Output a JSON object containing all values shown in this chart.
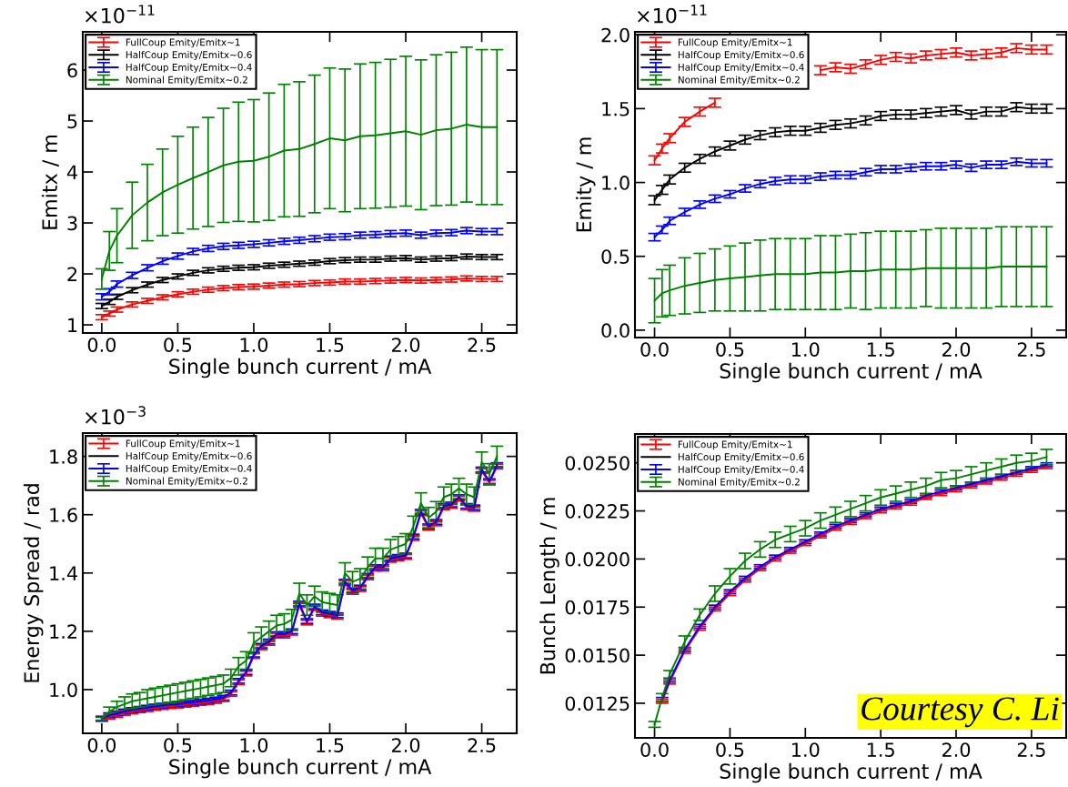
{
  "chart_data": [
    {
      "type": "line",
      "xlabel": "Single bunch current / mA",
      "ylabel": "Emitx / m",
      "annotations": [
        "×10$^{−11}$"
      ],
      "legend": "top left",
      "xlim": [
        -0.125,
        2.73
      ],
      "xticks": [
        {
          "value": 0,
          "label": "0.0"
        },
        0.5,
        {
          "value": 1,
          "label": "1.0"
        },
        1.5,
        {
          "value": 2,
          "label": "2.0"
        },
        2.5
      ],
      "ylim": [
        0.84,
        6.75
      ],
      "yticks": [
        1,
        2,
        3,
        4,
        5,
        6
      ],
      "x": [
        0,
        0.05,
        0.1,
        0.2,
        0.3,
        0.4,
        0.5,
        0.6,
        0.7,
        0.8,
        0.9,
        1.0,
        1.1,
        1.2,
        1.3,
        1.4,
        1.5,
        1.6,
        1.7,
        1.8,
        1.9,
        2.0,
        2.1,
        2.2,
        2.3,
        2.4,
        2.5,
        2.6
      ],
      "series": [
        {
          "name": "FullCoup Emity/Emitx~1",
          "color": "#ff0000",
          "values": [
            1.15,
            1.22,
            1.3,
            1.4,
            1.47,
            1.54,
            1.6,
            1.65,
            1.69,
            1.72,
            1.74,
            1.75,
            1.77,
            1.79,
            1.8,
            1.82,
            1.83,
            1.85,
            1.85,
            1.86,
            1.87,
            1.88,
            1.87,
            1.88,
            1.89,
            1.91,
            1.9,
            1.9
          ],
          "errors": [
            0.05,
            0.05,
            0.05,
            0.05,
            0.05,
            0.05,
            0.05,
            0.05,
            0.05,
            0.05,
            0.05,
            0.05,
            0.05,
            0.05,
            0.05,
            0.05,
            0.05,
            0.05,
            0.05,
            0.05,
            0.05,
            0.05,
            0.05,
            0.05,
            0.05,
            0.05,
            0.05,
            0.05
          ]
        },
        {
          "name": "HalfCoup Emity/Emitx~0.6",
          "color": "#000000",
          "values": [
            1.37,
            1.45,
            1.55,
            1.68,
            1.79,
            1.88,
            1.95,
            2.02,
            2.07,
            2.1,
            2.12,
            2.13,
            2.16,
            2.18,
            2.2,
            2.22,
            2.25,
            2.27,
            2.28,
            2.28,
            2.3,
            2.31,
            2.28,
            2.3,
            2.31,
            2.34,
            2.33,
            2.33
          ],
          "errors": [
            0.05,
            0.05,
            0.05,
            0.05,
            0.05,
            0.05,
            0.05,
            0.05,
            0.05,
            0.05,
            0.05,
            0.05,
            0.05,
            0.05,
            0.05,
            0.05,
            0.05,
            0.05,
            0.05,
            0.05,
            0.05,
            0.05,
            0.05,
            0.05,
            0.05,
            0.05,
            0.05,
            0.05
          ]
        },
        {
          "name": "HalfCoup Emity/Emitx~0.4",
          "color": "#0000ff",
          "values": [
            1.55,
            1.65,
            1.8,
            1.97,
            2.12,
            2.25,
            2.35,
            2.44,
            2.5,
            2.54,
            2.56,
            2.58,
            2.61,
            2.64,
            2.66,
            2.69,
            2.72,
            2.73,
            2.76,
            2.77,
            2.79,
            2.8,
            2.76,
            2.8,
            2.81,
            2.85,
            2.83,
            2.83
          ],
          "errors": [
            0.06,
            0.06,
            0.06,
            0.06,
            0.06,
            0.06,
            0.06,
            0.06,
            0.06,
            0.06,
            0.06,
            0.06,
            0.06,
            0.06,
            0.06,
            0.06,
            0.06,
            0.06,
            0.06,
            0.06,
            0.06,
            0.06,
            0.06,
            0.06,
            0.06,
            0.06,
            0.06,
            0.06
          ]
        },
        {
          "name": "Nominal Emity/Emitx~0.2",
          "color": "#008000",
          "values": [
            1.9,
            2.45,
            2.75,
            3.15,
            3.4,
            3.6,
            3.75,
            3.88,
            4.0,
            4.13,
            4.2,
            4.22,
            4.3,
            4.42,
            4.45,
            4.55,
            4.66,
            4.62,
            4.7,
            4.72,
            4.76,
            4.8,
            4.73,
            4.82,
            4.85,
            4.93,
            4.88,
            4.88
          ],
          "errors": [
            0.2,
            0.38,
            0.53,
            0.65,
            0.75,
            0.85,
            0.95,
            1.0,
            1.07,
            1.12,
            1.17,
            1.2,
            1.25,
            1.3,
            1.32,
            1.35,
            1.38,
            1.4,
            1.42,
            1.43,
            1.45,
            1.47,
            1.47,
            1.48,
            1.5,
            1.52,
            1.52,
            1.52
          ]
        }
      ]
    },
    {
      "type": "line",
      "xlabel": "Single bunch current / mA",
      "ylabel": "Emity / m",
      "annotations": [
        "×10$^{−11}$"
      ],
      "legend": "top left",
      "xlim": [
        -0.13,
        2.73
      ],
      "xticks": [
        {
          "value": 0,
          "label": "0.0"
        },
        0.5,
        {
          "value": 1,
          "label": "1.0"
        },
        1.5,
        {
          "value": 2,
          "label": "2.0"
        },
        2.5
      ],
      "ylim": [
        -0.05,
        2.02
      ],
      "yticks": [
        {
          "value": 0,
          "label": "0.0"
        },
        0.5,
        {
          "value": 1,
          "label": "1.0"
        },
        1.5,
        {
          "value": 2,
          "label": "2.0"
        }
      ],
      "x": [
        0,
        0.05,
        0.1,
        0.2,
        0.3,
        0.4,
        0.5,
        0.6,
        0.7,
        0.8,
        0.9,
        1.0,
        1.1,
        1.2,
        1.3,
        1.4,
        1.5,
        1.6,
        1.7,
        1.8,
        1.9,
        2.0,
        2.1,
        2.2,
        2.3,
        2.4,
        2.5,
        2.6
      ],
      "series": [
        {
          "name": "FullCoup Emity/Emitx~1",
          "color": "#ff0000",
          "values": [
            1.15,
            1.23,
            1.3,
            1.41,
            1.48,
            1.54,
            null,
            null,
            null,
            null,
            null,
            null,
            1.76,
            1.78,
            1.77,
            1.8,
            1.83,
            1.85,
            1.84,
            1.86,
            1.87,
            1.88,
            1.86,
            1.87,
            1.88,
            1.91,
            1.9,
            1.9
          ],
          "errors": [
            0.03,
            0.03,
            0.03,
            0.03,
            0.03,
            0.03,
            null,
            null,
            null,
            null,
            null,
            null,
            0.03,
            0.03,
            0.03,
            0.03,
            0.03,
            0.03,
            0.03,
            0.03,
            0.03,
            0.03,
            0.03,
            0.03,
            0.03,
            0.03,
            0.03,
            0.03
          ]
        },
        {
          "name": "HalfCoup Emity/Emitx~0.6",
          "color": "#000000",
          "values": [
            0.88,
            0.95,
            1.02,
            1.1,
            1.16,
            1.21,
            1.25,
            1.29,
            1.32,
            1.34,
            1.35,
            1.35,
            1.37,
            1.39,
            1.4,
            1.42,
            1.45,
            1.46,
            1.46,
            1.47,
            1.48,
            1.49,
            1.46,
            1.48,
            1.48,
            1.51,
            1.5,
            1.5
          ],
          "errors": [
            0.03,
            0.03,
            0.03,
            0.03,
            0.03,
            0.03,
            0.03,
            0.03,
            0.03,
            0.03,
            0.03,
            0.03,
            0.03,
            0.03,
            0.03,
            0.03,
            0.03,
            0.03,
            0.03,
            0.03,
            0.03,
            0.03,
            0.03,
            0.03,
            0.03,
            0.03,
            0.03,
            0.03
          ]
        },
        {
          "name": "HalfCoup Emity/Emitx~0.4",
          "color": "#0000ff",
          "values": [
            0.63,
            0.68,
            0.74,
            0.8,
            0.85,
            0.89,
            0.92,
            0.96,
            0.99,
            1.01,
            1.02,
            1.02,
            1.04,
            1.05,
            1.05,
            1.07,
            1.09,
            1.09,
            1.1,
            1.11,
            1.11,
            1.12,
            1.1,
            1.12,
            1.12,
            1.14,
            1.13,
            1.13
          ],
          "errors": [
            0.025,
            0.025,
            0.025,
            0.025,
            0.025,
            0.025,
            0.025,
            0.025,
            0.025,
            0.025,
            0.025,
            0.025,
            0.025,
            0.025,
            0.025,
            0.025,
            0.025,
            0.025,
            0.025,
            0.025,
            0.025,
            0.025,
            0.025,
            0.025,
            0.025,
            0.025,
            0.025,
            0.025
          ]
        },
        {
          "name": "Nominal Emity/Emitx~0.2",
          "color": "#008000",
          "values": [
            0.2,
            0.25,
            0.27,
            0.3,
            0.32,
            0.34,
            0.35,
            0.36,
            0.37,
            0.38,
            0.38,
            0.38,
            0.39,
            0.39,
            0.4,
            0.4,
            0.41,
            0.41,
            0.41,
            0.42,
            0.42,
            0.42,
            0.42,
            0.42,
            0.43,
            0.43,
            0.43,
            0.43
          ],
          "errors": [
            0.15,
            0.16,
            0.17,
            0.19,
            0.2,
            0.21,
            0.22,
            0.23,
            0.24,
            0.24,
            0.24,
            0.24,
            0.25,
            0.25,
            0.25,
            0.26,
            0.26,
            0.26,
            0.26,
            0.26,
            0.27,
            0.27,
            0.27,
            0.27,
            0.27,
            0.27,
            0.27,
            0.27
          ]
        }
      ]
    },
    {
      "type": "line",
      "xlabel": "Single bunch current / mA",
      "ylabel": "Energy Spread / rad",
      "annotations": [
        "×10$^{−3}$"
      ],
      "legend": "top left",
      "xlim": [
        -0.125,
        2.73
      ],
      "xticks": [
        {
          "value": 0,
          "label": "0.0"
        },
        0.5,
        {
          "value": 1,
          "label": "1.0"
        },
        1.5,
        {
          "value": 2,
          "label": "2.0"
        },
        2.5
      ],
      "ylim": [
        0.85,
        1.88
      ],
      "yticks": [
        {
          "value": 1,
          "label": "1.0"
        },
        1.2,
        1.4,
        1.6,
        1.8
      ],
      "x": [
        0,
        0.05,
        0.1,
        0.15,
        0.2,
        0.25,
        0.3,
        0.35,
        0.4,
        0.45,
        0.5,
        0.55,
        0.6,
        0.65,
        0.7,
        0.75,
        0.8,
        0.85,
        0.9,
        0.95,
        1.0,
        1.05,
        1.1,
        1.15,
        1.2,
        1.25,
        1.3,
        1.35,
        1.4,
        1.45,
        1.5,
        1.55,
        1.6,
        1.65,
        1.7,
        1.75,
        1.8,
        1.85,
        1.9,
        1.95,
        2.0,
        2.05,
        2.1,
        2.15,
        2.2,
        2.25,
        2.3,
        2.35,
        2.4,
        2.45,
        2.5,
        2.55,
        2.6
      ],
      "series": [
        {
          "name": "FullCoup Emity/Emitx~1",
          "color": "#ff0000",
          "values": [
            0.9,
            0.907,
            0.913,
            0.92,
            0.925,
            0.929,
            0.933,
            0.937,
            0.94,
            0.943,
            0.945,
            0.948,
            0.951,
            0.954,
            0.957,
            0.961,
            0.967,
            0.985,
            1.025,
            1.055,
            1.115,
            1.145,
            1.16,
            1.185,
            1.185,
            1.195,
            1.29,
            1.23,
            1.28,
            1.26,
            1.255,
            1.25,
            1.365,
            1.335,
            1.345,
            1.385,
            1.415,
            1.415,
            1.445,
            1.45,
            1.455,
            1.52,
            1.605,
            1.555,
            1.57,
            1.625,
            1.63,
            1.655,
            1.625,
            1.62,
            1.75,
            1.71,
            1.765
          ],
          "errors": [
            0.008,
            0.008,
            0.008,
            0.008,
            0.008,
            0.008,
            0.008,
            0.008,
            0.008,
            0.008,
            0.008,
            0.008,
            0.008,
            0.008,
            0.008,
            0.008,
            0.008,
            0.008,
            0.008,
            0.008,
            0.008,
            0.008,
            0.008,
            0.008,
            0.008,
            0.008,
            0.008,
            0.008,
            0.008,
            0.008,
            0.008,
            0.008,
            0.008,
            0.008,
            0.008,
            0.008,
            0.008,
            0.008,
            0.008,
            0.008,
            0.008,
            0.008,
            0.008,
            0.008,
            0.008,
            0.008,
            0.008,
            0.008,
            0.008,
            0.008,
            0.008,
            0.008,
            0.008
          ]
        },
        {
          "name": "HalfCoup Emity/Emitx~0.6",
          "color": "#000000",
          "values": [
            null,
            null,
            null,
            null,
            null,
            null,
            null,
            null,
            null,
            null,
            null,
            null,
            null,
            null,
            null,
            null,
            null,
            null,
            null,
            null,
            null,
            null,
            null,
            null,
            null,
            null,
            null,
            null,
            null,
            null,
            null,
            null,
            null,
            null,
            null,
            null,
            null,
            null,
            null,
            null,
            null,
            null,
            null,
            null,
            null,
            null,
            null,
            null,
            null,
            null,
            null,
            null,
            null
          ]
        },
        {
          "name": "HalfCoup Emity/Emitx~0.4",
          "color": "#0000ff",
          "values": [
            0.9,
            0.912,
            0.918,
            0.925,
            0.93,
            0.934,
            0.938,
            0.942,
            0.945,
            0.948,
            0.95,
            0.953,
            0.956,
            0.959,
            0.962,
            0.966,
            0.972,
            0.99,
            1.03,
            1.06,
            1.12,
            1.15,
            1.165,
            1.19,
            1.19,
            1.2,
            1.295,
            1.235,
            1.285,
            1.265,
            1.26,
            1.255,
            1.37,
            1.34,
            1.35,
            1.39,
            1.42,
            1.42,
            1.45,
            1.455,
            1.46,
            1.525,
            1.61,
            1.56,
            1.575,
            1.63,
            1.635,
            1.66,
            1.63,
            1.625,
            1.755,
            1.715,
            1.77
          ],
          "errors": [
            0.008,
            0.008,
            0.008,
            0.008,
            0.008,
            0.008,
            0.008,
            0.008,
            0.008,
            0.008,
            0.008,
            0.008,
            0.008,
            0.008,
            0.008,
            0.008,
            0.008,
            0.008,
            0.008,
            0.008,
            0.008,
            0.008,
            0.008,
            0.008,
            0.008,
            0.008,
            0.008,
            0.008,
            0.008,
            0.008,
            0.008,
            0.008,
            0.008,
            0.008,
            0.008,
            0.008,
            0.008,
            0.008,
            0.008,
            0.008,
            0.008,
            0.008,
            0.008,
            0.008,
            0.008,
            0.008,
            0.008,
            0.008,
            0.008,
            0.008,
            0.008,
            0.008,
            0.008
          ]
        },
        {
          "name": "Nominal Emity/Emitx~0.2",
          "color": "#008000",
          "values": [
            0.9,
            0.925,
            0.94,
            0.95,
            0.96,
            0.965,
            0.97,
            0.975,
            0.98,
            0.985,
            0.99,
            0.995,
            1.0,
            1.005,
            1.01,
            1.015,
            1.02,
            1.04,
            1.08,
            1.1,
            1.16,
            1.18,
            1.2,
            1.22,
            1.225,
            1.24,
            1.33,
            1.29,
            1.32,
            1.3,
            1.295,
            1.29,
            1.4,
            1.37,
            1.38,
            1.42,
            1.45,
            1.45,
            1.48,
            1.49,
            1.5,
            1.56,
            1.64,
            1.59,
            1.61,
            1.66,
            1.67,
            1.69,
            1.67,
            1.66,
            1.78,
            1.74,
            1.8
          ],
          "errors": [
            0.005,
            0.015,
            0.02,
            0.025,
            0.025,
            0.025,
            0.03,
            0.03,
            0.03,
            0.03,
            0.03,
            0.03,
            0.03,
            0.03,
            0.03,
            0.03,
            0.03,
            0.03,
            0.03,
            0.03,
            0.035,
            0.035,
            0.035,
            0.035,
            0.035,
            0.035,
            0.035,
            0.035,
            0.035,
            0.035,
            0.035,
            0.035,
            0.035,
            0.035,
            0.035,
            0.035,
            0.035,
            0.035,
            0.035,
            0.035,
            0.035,
            0.035,
            0.035,
            0.035,
            0.035,
            0.035,
            0.035,
            0.035,
            0.035,
            0.035,
            0.035,
            0.035,
            0.035
          ]
        }
      ]
    },
    {
      "type": "line",
      "xlabel": "Single bunch current / mA",
      "ylabel": "Bunch Length / m",
      "annotations": [
        "Courtesy C. Li"
      ],
      "legend": "top left",
      "xlim": [
        -0.13,
        2.73
      ],
      "xticks": [
        {
          "value": 0,
          "label": "0.0"
        },
        0.5,
        {
          "value": 1,
          "label": "1.0"
        },
        1.5,
        {
          "value": 2,
          "label": "2.0"
        },
        2.5
      ],
      "ylim": [
        0.0107,
        0.0265
      ],
      "yticks": [
        0.0125,
        {
          "value": 0.015,
          "label": "0.0150"
        },
        0.0175,
        {
          "value": 0.02,
          "label": "0.0200"
        },
        0.0225,
        {
          "value": 0.025,
          "label": "0.0250"
        }
      ],
      "x": [
        0,
        0.05,
        0.1,
        0.2,
        0.3,
        0.4,
        0.5,
        0.6,
        0.7,
        0.8,
        0.9,
        1.0,
        1.1,
        1.2,
        1.3,
        1.4,
        1.5,
        1.6,
        1.7,
        1.8,
        1.9,
        2.0,
        2.1,
        2.2,
        2.3,
        2.4,
        2.5,
        2.6
      ],
      "series": [
        {
          "name": "FullCoup Emity/Emitx~1",
          "color": "#ff0000",
          "values": [
            null,
            0.0126,
            0.0136,
            0.0152,
            0.0164,
            0.0174,
            0.0182,
            0.0189,
            0.0195,
            0.02,
            0.0204,
            0.0208,
            0.0212,
            0.0216,
            0.0219,
            0.0222,
            0.0225,
            0.0227,
            0.0229,
            0.0232,
            0.0234,
            0.0236,
            0.0238,
            0.024,
            0.0242,
            0.0244,
            0.0246,
            0.0248
          ],
          "errors": [
            null,
            0.0001,
            0.0001,
            0.0001,
            0.0001,
            0.0001,
            0.0001,
            0.0001,
            0.0001,
            0.0001,
            0.0001,
            0.0001,
            0.0001,
            0.0001,
            0.0001,
            0.0001,
            0.0001,
            0.0001,
            0.0001,
            0.0001,
            0.0001,
            0.0001,
            0.0001,
            0.0001,
            0.0001,
            0.0001,
            0.0001,
            0.0001
          ]
        },
        {
          "name": "HalfCoup Emity/Emitx~0.6",
          "color": "#000000",
          "values": [
            null,
            null,
            null,
            null,
            null,
            null,
            null,
            null,
            null,
            null,
            null,
            null,
            null,
            null,
            null,
            null,
            null,
            null,
            null,
            null,
            null,
            null,
            null,
            null,
            null,
            null,
            null,
            null
          ]
        },
        {
          "name": "HalfCoup Emity/Emitx~0.4",
          "color": "#0000ff",
          "values": [
            null,
            0.0127,
            0.0137,
            0.0153,
            0.0165,
            0.0175,
            0.0183,
            0.019,
            0.0196,
            0.0201,
            0.0205,
            0.0209,
            0.0213,
            0.0217,
            0.022,
            0.0223,
            0.0226,
            0.0228,
            0.023,
            0.0233,
            0.0235,
            0.0237,
            0.0239,
            0.0241,
            0.0243,
            0.0245,
            0.0247,
            0.0249
          ],
          "errors": [
            null,
            0.0001,
            0.0001,
            0.0001,
            0.0001,
            0.0001,
            0.0001,
            0.0001,
            0.0001,
            0.0001,
            0.0001,
            0.0001,
            0.0001,
            0.0001,
            0.0001,
            0.0001,
            0.0001,
            0.0001,
            0.0001,
            0.0001,
            0.0001,
            0.0001,
            0.0001,
            0.0001,
            0.0001,
            0.0001,
            0.0001,
            0.0001
          ]
        },
        {
          "name": "Nominal Emity/Emitx~0.2",
          "color": "#008000",
          "values": [
            0.0114,
            0.0128,
            0.014,
            0.0157,
            0.0171,
            0.0182,
            0.0191,
            0.0199,
            0.0205,
            0.021,
            0.0213,
            0.0216,
            0.022,
            0.0223,
            0.0226,
            0.0229,
            0.0232,
            0.0234,
            0.0236,
            0.0238,
            0.0241,
            0.0242,
            0.0244,
            0.0246,
            0.0248,
            0.025,
            0.0251,
            0.0253
          ],
          "errors": [
            0.00015,
            0.0002,
            0.0002,
            0.0003,
            0.0003,
            0.0004,
            0.0004,
            0.0004,
            0.0004,
            0.0004,
            0.0004,
            0.0004,
            0.0004,
            0.0004,
            0.0004,
            0.0004,
            0.0004,
            0.0004,
            0.0004,
            0.0004,
            0.0004,
            0.0004,
            0.0004,
            0.0004,
            0.0004,
            0.0004,
            0.0004,
            0.0004
          ]
        }
      ]
    }
  ]
}
